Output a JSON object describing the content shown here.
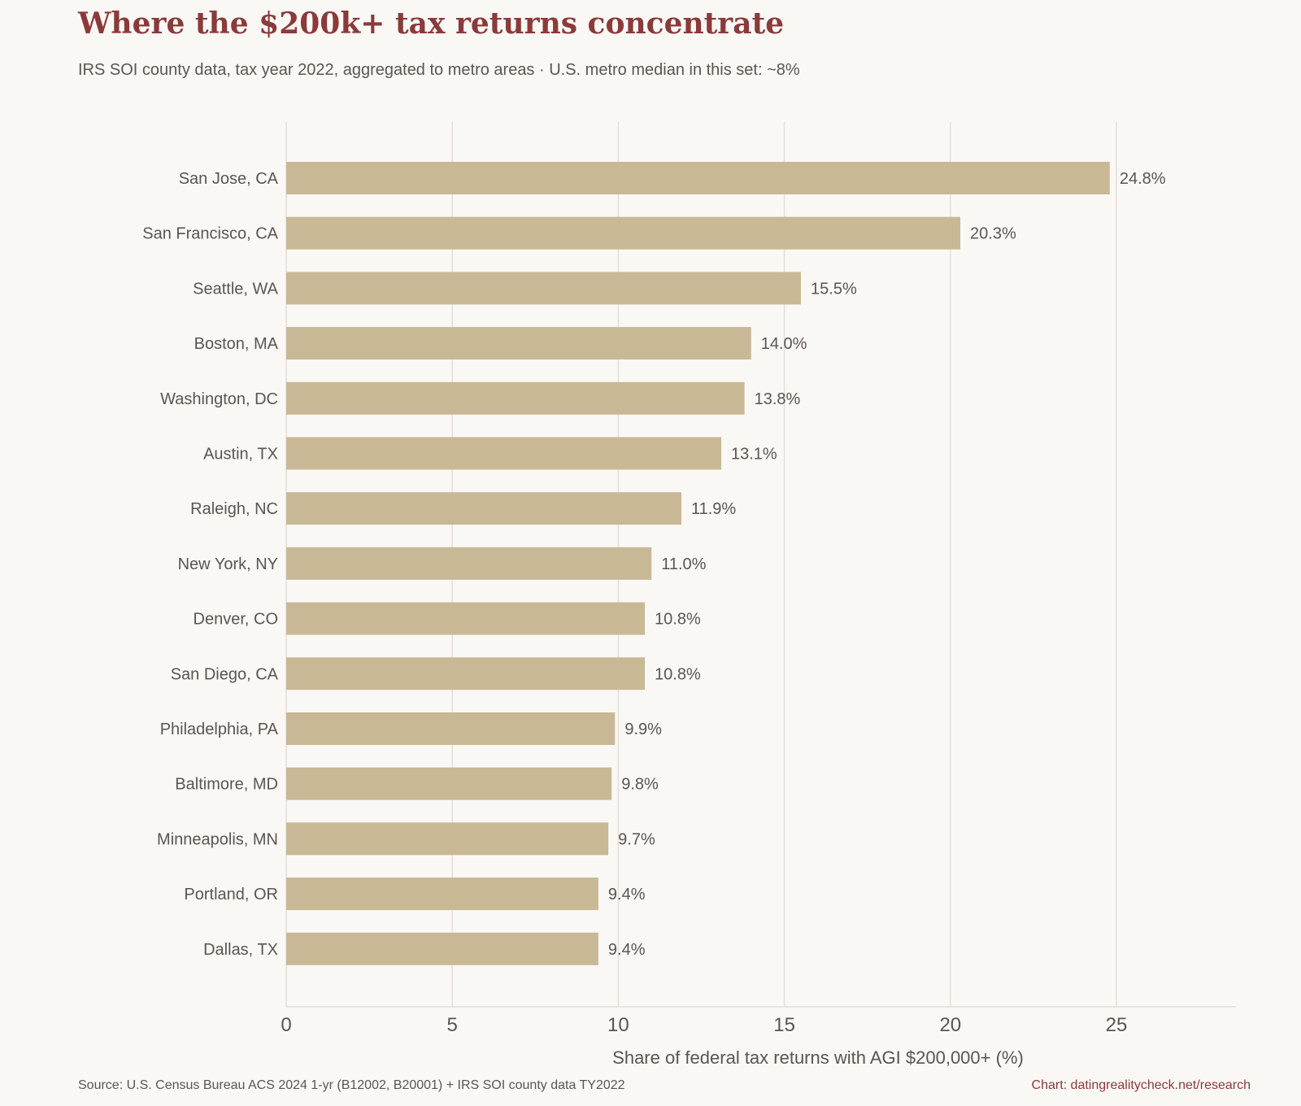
{
  "header": {
    "title": "Where the $200k+ tax returns concentrate",
    "subtitle": "IRS SOI county data, tax year 2022, aggregated to metro areas · U.S. metro median in this set: ~8%"
  },
  "footer": {
    "source": "Source: U.S. Census Bureau ACS 2024 1-yr (B12002, B20001) + IRS SOI county data TY2022",
    "credit": "Chart: datingrealitycheck.net/research"
  },
  "colors": {
    "bar": "#c9b896",
    "title": "#8b3a3a",
    "text": "#5a554f",
    "grid": "#e4e0d8",
    "background": "#faf8f5"
  },
  "chart_data": {
    "type": "bar",
    "orientation": "horizontal",
    "categories": [
      "San Jose, CA",
      "San Francisco, CA",
      "Seattle, WA",
      "Boston, MA",
      "Washington, DC",
      "Austin, TX",
      "Raleigh, NC",
      "New York, NY",
      "Denver, CO",
      "San Diego, CA",
      "Philadelphia, PA",
      "Baltimore, MD",
      "Minneapolis, MN",
      "Portland, OR",
      "Dallas, TX"
    ],
    "values": [
      24.8,
      20.3,
      15.5,
      14.0,
      13.8,
      13.1,
      11.9,
      11.0,
      10.8,
      10.8,
      9.9,
      9.8,
      9.7,
      9.4,
      9.4
    ],
    "labels": [
      "24.8%",
      "20.3%",
      "15.5%",
      "14.0%",
      "13.8%",
      "13.1%",
      "11.9%",
      "11.0%",
      "10.8%",
      "10.8%",
      "9.9%",
      "9.8%",
      "9.7%",
      "9.4%",
      "9.4%"
    ],
    "xlabel": "Share of federal tax returns with AGI $200,000+ (%)",
    "ylabel": "",
    "xlim": [
      0,
      28
    ],
    "xticks": [
      0,
      5,
      10,
      15,
      20,
      25
    ],
    "grid": "vertical"
  }
}
